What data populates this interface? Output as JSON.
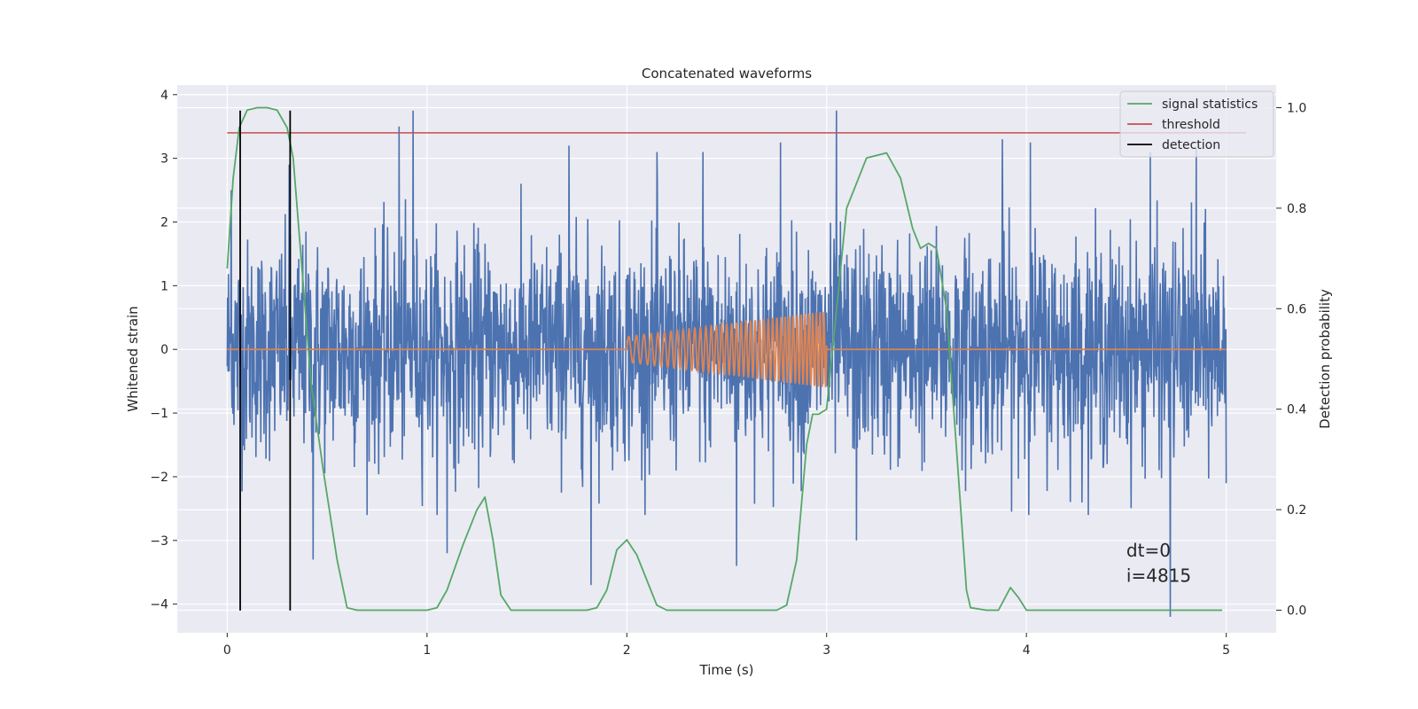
{
  "chart_data": {
    "type": "line",
    "title": "Concatenated waveforms",
    "xlabel": "Time (s)",
    "ylabel_left": "Whitened strain",
    "ylabel_right": "Detection probability",
    "xlim": [
      -0.25,
      5.25
    ],
    "ylim_left": [
      -4.45,
      4.15
    ],
    "ylim_right": [
      -0.045,
      1.045
    ],
    "x_ticks": [
      0,
      1,
      2,
      3,
      4,
      5
    ],
    "x_tick_labels": [
      "0",
      "1",
      "2",
      "3",
      "4",
      "5"
    ],
    "y_ticks_left": [
      -4,
      -3,
      -2,
      -1,
      0,
      1,
      2,
      3,
      4
    ],
    "y_tick_labels_left": [
      "−4",
      "−3",
      "−2",
      "−1",
      "0",
      "1",
      "2",
      "3",
      "4"
    ],
    "y_ticks_right": [
      0.0,
      0.2,
      0.4,
      0.6,
      0.8,
      1.0
    ],
    "y_tick_labels_right": [
      "0.0",
      "0.2",
      "0.4",
      "0.6",
      "0.8",
      "1.0"
    ],
    "grid": true,
    "legend_position": "top-right",
    "legend": [
      {
        "label": "signal statistics",
        "color": "#55a868"
      },
      {
        "label": "threshold",
        "color": "#c44e52"
      },
      {
        "label": "detection",
        "color": "#000000"
      }
    ],
    "series": [
      {
        "name": "signal statistics",
        "axis": "right",
        "color": "#55a868",
        "x": [
          0.0,
          0.03,
          0.06,
          0.1,
          0.15,
          0.2,
          0.25,
          0.3,
          0.33,
          0.37,
          0.42,
          0.48,
          0.55,
          0.6,
          0.65,
          0.8,
          1.0,
          1.05,
          1.1,
          1.18,
          1.25,
          1.29,
          1.33,
          1.37,
          1.42,
          1.6,
          1.8,
          1.85,
          1.9,
          1.95,
          2.0,
          2.05,
          2.1,
          2.15,
          2.2,
          2.5,
          2.75,
          2.8,
          2.85,
          2.9,
          2.93,
          2.96,
          3.0,
          3.05,
          3.1,
          3.2,
          3.3,
          3.37,
          3.43,
          3.47,
          3.51,
          3.55,
          3.6,
          3.65,
          3.7,
          3.72,
          3.8,
          3.86,
          3.9,
          3.92,
          3.96,
          4.0,
          4.5,
          4.9,
          4.98
        ],
        "y": [
          0.68,
          0.86,
          0.96,
          0.995,
          1.0,
          1.0,
          0.995,
          0.96,
          0.9,
          0.7,
          0.45,
          0.28,
          0.1,
          0.005,
          0.0,
          0.0,
          0.0,
          0.005,
          0.04,
          0.13,
          0.2,
          0.225,
          0.14,
          0.03,
          0.0,
          0.0,
          0.0,
          0.005,
          0.04,
          0.12,
          0.14,
          0.11,
          0.06,
          0.01,
          0.0,
          0.0,
          0.0,
          0.01,
          0.1,
          0.33,
          0.39,
          0.39,
          0.4,
          0.6,
          0.8,
          0.9,
          0.91,
          0.86,
          0.76,
          0.72,
          0.73,
          0.72,
          0.6,
          0.32,
          0.04,
          0.005,
          0.0,
          0.0,
          0.03,
          0.045,
          0.025,
          0.0,
          0.0,
          0.0,
          0.0
        ]
      },
      {
        "name": "threshold",
        "axis": "right",
        "color": "#c44e52",
        "x": [
          0.0,
          5.1
        ],
        "y": [
          0.95,
          0.95
        ]
      },
      {
        "name": "detection",
        "axis": "left",
        "color": "#000000",
        "x": [
          0.065,
          0.315
        ],
        "y_range": [
          -4.1,
          3.75
        ]
      },
      {
        "name": "",
        "axis": "left",
        "color": "#4c72b0",
        "description_free": true,
        "x_range": [
          0.0,
          5.0
        ],
        "typical_amplitude": 1.3,
        "spikes": [
          {
            "x": 0.02,
            "y": 2.5
          },
          {
            "x": 0.31,
            "y": 2.9
          },
          {
            "x": 0.43,
            "y": -3.3
          },
          {
            "x": 0.86,
            "y": 3.5
          },
          {
            "x": 0.93,
            "y": 3.75
          },
          {
            "x": 1.1,
            "y": -3.2
          },
          {
            "x": 1.71,
            "y": 3.2
          },
          {
            "x": 1.82,
            "y": -3.7
          },
          {
            "x": 2.15,
            "y": 3.1
          },
          {
            "x": 2.38,
            "y": 3.1
          },
          {
            "x": 2.77,
            "y": 3.25
          },
          {
            "x": 3.05,
            "y": 3.75
          },
          {
            "x": 3.15,
            "y": -3.0
          },
          {
            "x": 3.88,
            "y": 3.3
          },
          {
            "x": 4.02,
            "y": 3.25
          },
          {
            "x": 4.62,
            "y": 3.1
          },
          {
            "x": 4.72,
            "y": -4.2
          },
          {
            "x": 4.85,
            "y": 3.15
          },
          {
            "x": 2.55,
            "y": -3.4
          }
        ]
      },
      {
        "name": "",
        "axis": "left",
        "color": "#dd8452",
        "chirp": {
          "t_start": 2.0,
          "t_end": 3.0,
          "amp_start": 0.2,
          "amp_end": 0.6,
          "freq_start": 25,
          "freq_end": 55
        },
        "baseline": 0.0
      }
    ],
    "annotations": [
      {
        "text": "dt=0",
        "x": 4.5,
        "y": -3.25
      },
      {
        "text": "i=4815",
        "x": 4.5,
        "y": -3.65
      }
    ]
  }
}
